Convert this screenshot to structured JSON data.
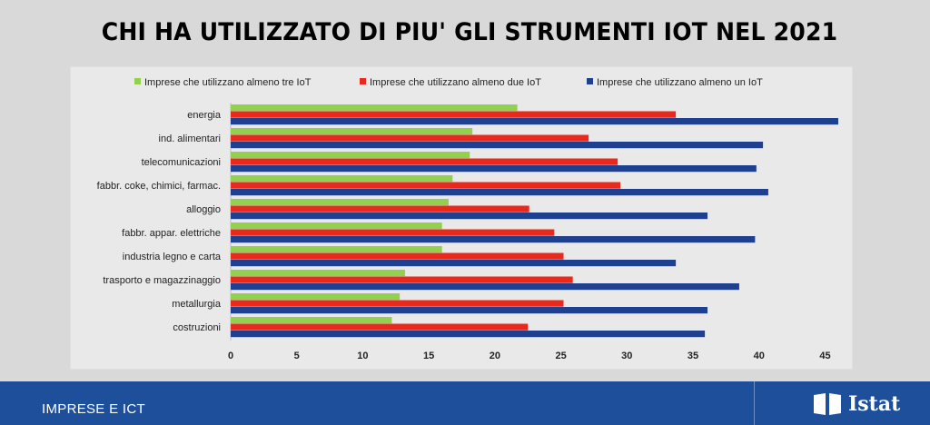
{
  "chart_data": {
    "type": "bar",
    "orientation": "horizontal",
    "title": "CHI HA UTILIZZATO DI PIU' GLI STRUMENTI IOT NEL 2021",
    "categories": [
      "energia",
      "ind. alimentari",
      "telecomunicazioni",
      "fabbr. coke, chimici,  farmac.",
      "alloggio",
      "fabbr. appar. elettriche",
      "industria legno e carta",
      "trasporto e magazzinaggio",
      "metallurgia",
      "costruzioni"
    ],
    "series": [
      {
        "name": "Imprese che utilizzano almeno tre IoT",
        "color": "#92d050",
        "values": [
          21.7,
          18.3,
          18.1,
          16.8,
          16.5,
          16.0,
          16.0,
          13.2,
          12.8,
          12.2
        ]
      },
      {
        "name": "Imprese che utilizzano almeno due IoT",
        "color": "#e8291c",
        "values": [
          33.7,
          27.1,
          29.3,
          29.5,
          22.6,
          24.5,
          25.2,
          25.9,
          25.2,
          22.5
        ]
      },
      {
        "name": "Imprese che utilizzano almeno un IoT",
        "color": "#1f3f8f",
        "values": [
          46.0,
          40.3,
          39.8,
          40.7,
          36.1,
          39.7,
          33.7,
          38.5,
          36.1,
          35.9
        ]
      }
    ],
    "xlim": [
      0,
      46
    ],
    "xticks": [
      0,
      5,
      10,
      15,
      20,
      25,
      30,
      35,
      40,
      45
    ],
    "legend_position": "top",
    "grid": false
  },
  "footer": {
    "label": "IMPRESE E ICT",
    "brand": "Istat"
  }
}
